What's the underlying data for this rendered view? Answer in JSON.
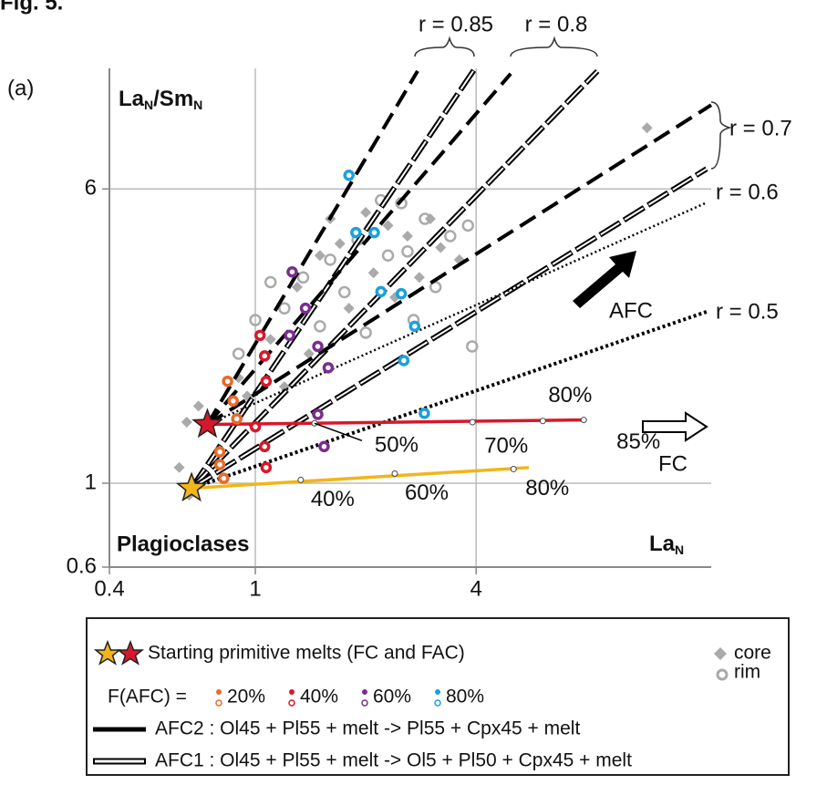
{
  "chart_data": {
    "type": "scatter",
    "figure_label": "Fig. 5.",
    "panel_label": "(a)",
    "y_label": [
      "La",
      "N",
      "/Sm",
      "N"
    ],
    "x_label": [
      "La",
      "N"
    ],
    "annotation": "Plagioclases",
    "log_x": true,
    "log_y": true,
    "grid": true,
    "xlim": [
      0.4,
      17.5
    ],
    "ylim": [
      0.6,
      12.5
    ],
    "xticks": [
      0.4,
      1,
      4
    ],
    "yticks": [
      0.6,
      1,
      6
    ],
    "starting_melts": [
      {
        "color": "#f2b519",
        "x": 0.67,
        "y": 0.97
      },
      {
        "color": "#d7182a",
        "x": 0.74,
        "y": 1.43
      }
    ],
    "series": [
      {
        "name": "core",
        "marker": "diamond",
        "color": "#aaaaaa",
        "x": [
          0.62,
          0.65,
          0.7,
          0.66,
          0.9,
          1.1,
          1.3,
          1.5,
          1.7,
          2.0,
          2.3,
          2.6,
          3.0,
          3.2,
          2.1,
          1.8,
          2.4,
          1.4,
          1.2,
          3.6,
          11.7,
          1.6,
          2.8,
          0.95
        ],
        "y": [
          1.1,
          1.45,
          1.6,
          0.93,
          1.9,
          2.4,
          3.3,
          4.0,
          4.3,
          5.2,
          4.8,
          4.5,
          5.0,
          4.2,
          3.6,
          2.9,
          3.1,
          2.2,
          1.8,
          3.9,
          8.7,
          5.0,
          3.5,
          1.7
        ]
      },
      {
        "name": "rim",
        "marker": "ring",
        "color": "#aaaaaa",
        "x": [
          0.9,
          1.0,
          1.2,
          1.35,
          1.6,
          1.9,
          2.2,
          2.5,
          2.9,
          3.4,
          3.9,
          2.7,
          2.0,
          1.75,
          2.3,
          3.1,
          1.5,
          2.6,
          3.8,
          1.1
        ],
        "y": [
          2.2,
          2.7,
          2.9,
          3.5,
          3.9,
          4.4,
          5.6,
          5.5,
          5.0,
          4.5,
          2.3,
          2.7,
          2.5,
          3.2,
          4.0,
          3.3,
          2.6,
          4.1,
          4.8,
          3.4
        ]
      }
    ],
    "afc_points": [
      {
        "name": "20%",
        "color": "#e8692a",
        "x": [
          0.84,
          0.87,
          0.89,
          0.8,
          0.8,
          0.82
        ],
        "y": [
          1.86,
          1.65,
          1.48,
          1.21,
          1.12,
          1.03
        ]
      },
      {
        "name": "40%",
        "color": "#d7182a",
        "x": [
          1.03,
          1.06,
          1.07,
          1.0,
          1.06,
          1.07
        ],
        "y": [
          2.46,
          2.17,
          1.86,
          1.41,
          1.25,
          1.1
        ]
      },
      {
        "name": "60%",
        "color": "#7b2d8e",
        "x": [
          1.26,
          1.37,
          1.24,
          1.48,
          1.58,
          1.48,
          1.54
        ],
        "y": [
          3.62,
          2.9,
          2.46,
          2.3,
          2.02,
          1.52,
          1.25
        ]
      },
      {
        "name": "80%",
        "color": "#1ba1d8",
        "x": [
          1.8,
          1.88,
          2.11,
          2.2,
          2.5,
          2.72,
          2.54,
          2.89
        ],
        "y": [
          6.52,
          4.6,
          4.6,
          3.21,
          3.17,
          2.6,
          2.11,
          1.53
        ]
      }
    ],
    "fc_lines": [
      {
        "color": "#d7182a",
        "x": [
          0.74,
          7.86
        ],
        "y": [
          1.43,
          1.47
        ],
        "steps": {
          "x": [
            1.45,
            3.91,
            6.08,
            7.86
          ],
          "y": [
            1.44,
            1.45,
            1.46,
            1.47
          ],
          "labels": [
            "50%",
            "70%",
            "80%",
            "85%"
          ]
        }
      },
      {
        "color": "#f2b519",
        "x": [
          0.67,
          5.57
        ],
        "y": [
          0.97,
          1.1
        ],
        "steps": {
          "x": [
            1.33,
            2.4,
            5.06
          ],
          "y": [
            1.02,
            1.06,
            1.09
          ],
          "labels": [
            "40%",
            "60%",
            "80%"
          ]
        }
      }
    ],
    "afc_lines": [
      {
        "label": "r = 0.85",
        "lines": [
          {
            "model": "AFC2",
            "x": [
              0.74,
              2.77
            ],
            "y": [
              1.43,
              12.3
            ]
          },
          {
            "model": "AFC1",
            "x": [
              0.67,
              3.95
            ],
            "y": [
              0.97,
              12.4
            ]
          }
        ]
      },
      {
        "label": "r = 0.8",
        "lines": [
          {
            "model": "AFC2",
            "x": [
              0.74,
              4.97
            ],
            "y": [
              1.43,
              12.1
            ]
          },
          {
            "model": "AFC1",
            "x": [
              0.67,
              8.57
            ],
            "y": [
              0.97,
              12.3
            ]
          }
        ]
      },
      {
        "label": "r = 0.7",
        "lines": [
          {
            "model": "AFC2",
            "x": [
              0.74,
              17.5
            ],
            "y": [
              1.43,
              10.0
            ]
          },
          {
            "model": "AFC1",
            "x": [
              0.67,
              17.0
            ],
            "y": [
              0.97,
              6.78
            ]
          }
        ]
      },
      {
        "label": "r = 0.6",
        "lines": [
          {
            "model": "dotted-fine",
            "x": [
              0.74,
              17.0
            ],
            "y": [
              1.43,
              5.52
            ]
          }
        ]
      },
      {
        "label": "r = 0.5",
        "lines": [
          {
            "model": "dotted-thick",
            "x": [
              0.67,
              17.0
            ],
            "y": [
              0.97,
              2.84
            ]
          }
        ]
      }
    ],
    "arrow_labels": {
      "afc": "AFC",
      "fc": "FC"
    },
    "legend": {
      "starting": "Starting primitive melts (FC and FAC)",
      "f_afc": "F(AFC) =",
      "afc2": "AFC2 : Ol45 + Pl55 + melt -> Pl55 + Cpx45 + melt",
      "afc1": "AFC1 : Ol45 + Pl55 + melt -> Ol5 + Pl50 + Cpx45 + melt"
    }
  }
}
